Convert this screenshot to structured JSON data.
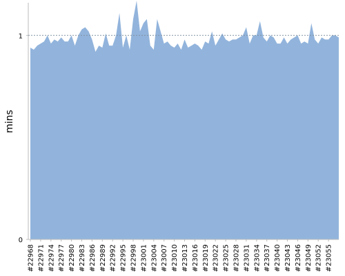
{
  "chart_data": {
    "type": "area",
    "ylabel": "mins",
    "xlabel": "",
    "ylim": [
      0,
      1.16
    ],
    "yticks": [
      0,
      1
    ],
    "reference_line": 1,
    "fill_color": "#92b4dc",
    "axis_color": "#bbbbbb",
    "reference_line_color": "#8090a0",
    "x_tick_labels": [
      "#22968",
      "#22971",
      "#22974",
      "#22977",
      "#22980",
      "#22983",
      "#22986",
      "#22989",
      "#22992",
      "#22995",
      "#22998",
      "#23001",
      "#23004",
      "#23007",
      "#23010",
      "#23013",
      "#23016",
      "#23019",
      "#23022",
      "#23025",
      "#23028",
      "#23031",
      "#23034",
      "#23037",
      "#23040",
      "#23043",
      "#23046",
      "#23049",
      "#23052",
      "#23055"
    ],
    "x_start": 22968,
    "values": [
      0.94,
      0.93,
      0.95,
      0.96,
      0.97,
      1.0,
      0.96,
      0.98,
      0.97,
      0.99,
      0.97,
      0.97,
      1.0,
      0.95,
      1.0,
      1.03,
      1.04,
      1.02,
      0.98,
      0.92,
      0.95,
      0.94,
      1.01,
      0.95,
      0.95,
      1.0,
      1.11,
      0.94,
      1.0,
      0.93,
      1.08,
      1.17,
      1.02,
      1.06,
      1.08,
      0.95,
      0.93,
      1.08,
      1.02,
      0.96,
      0.97,
      0.95,
      0.94,
      0.96,
      0.93,
      0.98,
      0.94,
      0.95,
      0.96,
      0.95,
      0.93,
      0.97,
      0.96,
      1.02,
      0.95,
      0.98,
      1.01,
      0.98,
      0.97,
      0.98,
      0.98,
      0.99,
      1.0,
      1.04,
      0.96,
      1.0,
      1.0,
      1.07,
      0.99,
      0.97,
      1.0,
      0.99,
      0.96,
      0.96,
      0.99,
      0.96,
      0.98,
      0.99,
      1.0,
      0.96,
      0.97,
      0.96,
      1.06,
      0.98,
      0.96,
      0.99,
      0.98,
      0.98,
      1.0,
      1.0,
      0.99
    ]
  }
}
